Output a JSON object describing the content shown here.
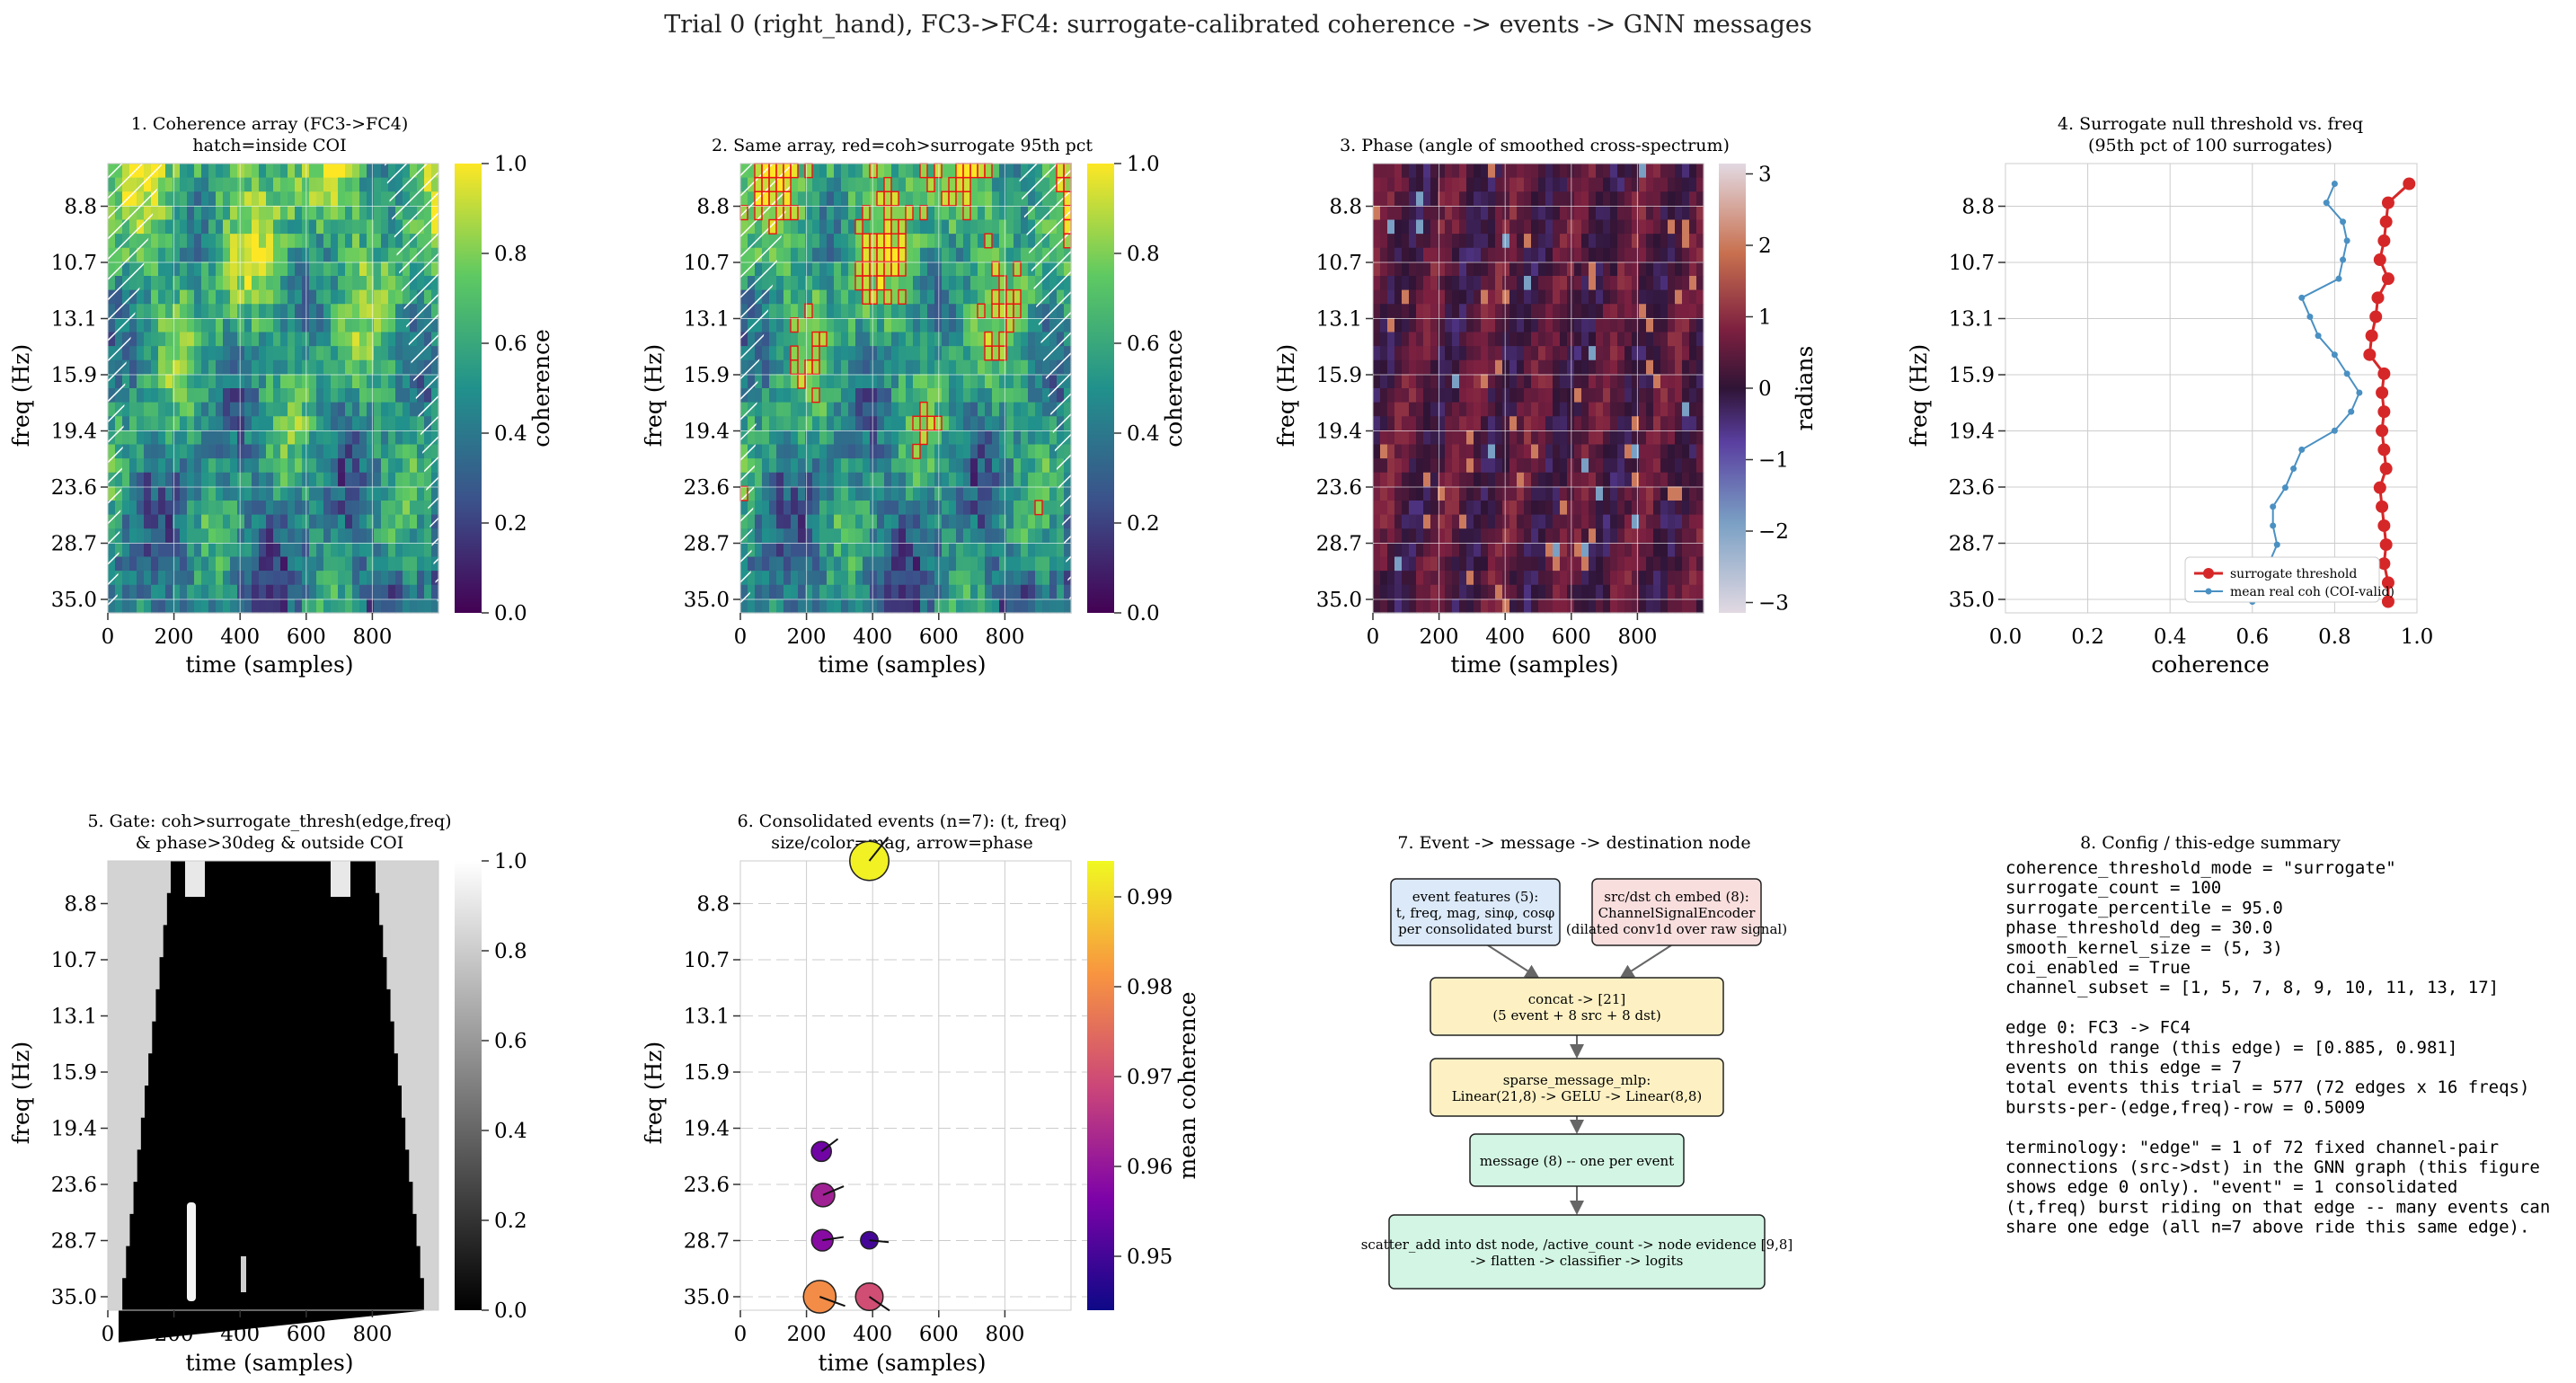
{
  "suptitle": "Trial 0 (right_hand), FC3->FC4: surrogate-calibrated coherence -> events -> GNN messages",
  "freq_ticks": [
    "8.8",
    "10.7",
    "13.1",
    "15.9",
    "19.4",
    "23.6",
    "28.7",
    "35.0"
  ],
  "time_ticks": [
    "0",
    "200",
    "400",
    "600",
    "800"
  ],
  "colors": {
    "surrogate": "#d62728",
    "mean_coh": "#4a90c2",
    "grid": "#cccccc",
    "box_blue": "#dbe9f8",
    "box_pink": "#f9dede",
    "box_yellow": "#fdf1c4",
    "box_green": "#d3f5e4"
  },
  "panel1": {
    "title": "1. Coherence array (FC3->FC4)\nhatch=inside COI",
    "xlabel": "time (samples)",
    "ylabel": "freq (Hz)",
    "cbar_label": "coherence",
    "cbar_ticks": [
      "0.0",
      "0.2",
      "0.4",
      "0.6",
      "0.8",
      "1.0"
    ]
  },
  "panel2": {
    "title": "2. Same array, red=coh>surrogate 95th pct",
    "xlabel": "time (samples)",
    "ylabel": "freq (Hz)",
    "cbar_label": "coherence",
    "cbar_ticks": [
      "0.0",
      "0.2",
      "0.4",
      "0.6",
      "0.8",
      "1.0"
    ]
  },
  "panel3": {
    "title": "3. Phase (angle of smoothed cross-spectrum)",
    "xlabel": "time (samples)",
    "ylabel": "freq (Hz)",
    "cbar_label": "radians",
    "cbar_ticks": [
      "−3",
      "−2",
      "−1",
      "0",
      "1",
      "2",
      "3"
    ]
  },
  "panel4": {
    "title": "4. Surrogate null threshold vs. freq\n(95th pct of 100 surrogates)",
    "xlabel": "coherence",
    "ylabel": "freq (Hz)",
    "xticks": [
      "0.0",
      "0.2",
      "0.4",
      "0.6",
      "0.8",
      "1.0"
    ]
  },
  "panel5": {
    "title": "5. Gate: coh>surrogate_thresh(edge,freq)\n& phase>30deg & outside COI",
    "xlabel": "time (samples)",
    "ylabel": "freq (Hz)",
    "cbar_ticks": [
      "0.0",
      "0.2",
      "0.4",
      "0.6",
      "0.8",
      "1.0"
    ]
  },
  "panel6": {
    "title": "6. Consolidated events (n=7): (t, freq)\nsize/color=mag, arrow=phase",
    "xlabel": "time (samples)",
    "ylabel": "freq (Hz)",
    "cbar_label": "mean coherence",
    "cbar_ticks": [
      "0.95",
      "0.96",
      "0.97",
      "0.98",
      "0.99"
    ]
  },
  "panel7": {
    "title": "7. Event -> message -> destination node",
    "boxes": {
      "features": "event features (5):\nt, freq, mag, sinφ, cosφ\nper consolidated burst",
      "embed": "src/dst ch embed (8):\nChannelSignalEncoder\n(dilated conv1d over raw signal)",
      "concat": "concat -> [21]\n(5 event + 8 src + 8 dst)",
      "mlp": "sparse_message_mlp:\nLinear(21,8) -> GELU -> Linear(8,8)",
      "message": "message (8) -- one per event",
      "scatter": "scatter_add into dst node, /active_count -> node evidence [9,8]\n-> flatten -> classifier -> logits"
    }
  },
  "panel8": {
    "title": "8. Config / this-edge summary",
    "lines": [
      "coherence_threshold_mode = \"surrogate\"",
      "surrogate_count = 100",
      "surrogate_percentile = 95.0",
      "phase_threshold_deg = 30.0",
      "smooth_kernel_size = (5, 3)",
      "coi_enabled = True",
      "channel_subset = [1, 5, 7, 8, 9, 10, 11, 13, 17]",
      "",
      "edge 0: FC3 -> FC4",
      "threshold range (this edge) = [0.885, 0.981]",
      "events on this edge = 7",
      "total events this trial = 577 (72 edges x 16 freqs)",
      "bursts-per-(edge,freq)-row = 0.5009",
      "",
      "terminology: \"edge\" = 1 of 72 fixed channel-pair",
      "connections (src->dst) in the GNN graph (this figure",
      "shows edge 0 only). \"event\" = 1 consolidated",
      "(t,freq) burst riding on that edge -- many events can",
      "share one edge (all n=7 above ride this same edge)."
    ]
  },
  "chart_data": [
    {
      "type": "heatmap",
      "title": "1. Coherence array (FC3->FC4)\nhatch=inside COI",
      "xlabel": "time (samples)",
      "ylabel": "freq (Hz)",
      "xlim": [
        0,
        1000
      ],
      "freq_labels": [
        "8.8",
        "10.7",
        "13.1",
        "15.9",
        "19.4",
        "23.6",
        "28.7",
        "35.0"
      ],
      "colorbar": {
        "label": "coherence",
        "range": [
          0,
          1
        ],
        "colormap": "viridis"
      }
    },
    {
      "type": "heatmap",
      "title": "2. Same array, red=coh>surrogate 95th pct",
      "xlabel": "time (samples)",
      "ylabel": "freq (Hz)",
      "xlim": [
        0,
        1000
      ],
      "colorbar": {
        "label": "coherence",
        "range": [
          0,
          1
        ],
        "colormap": "viridis"
      }
    },
    {
      "type": "heatmap",
      "title": "3. Phase (angle of smoothed cross-spectrum)",
      "xlabel": "time (samples)",
      "ylabel": "freq (Hz)",
      "xlim": [
        0,
        1000
      ],
      "colorbar": {
        "label": "radians",
        "range": [
          -3.14,
          3.14
        ],
        "colormap": "twilight"
      }
    },
    {
      "type": "line",
      "title": "4. Surrogate null threshold vs. freq\n(95th pct of 100 surrogates)",
      "xlabel": "coherence",
      "ylabel": "freq (Hz)",
      "xlim": [
        0,
        1
      ],
      "y_freq": [
        8,
        8.8,
        9.4,
        10.1,
        10.7,
        11.4,
        12.3,
        13.1,
        14.0,
        15.0,
        15.9,
        17.0,
        18.2,
        19.4,
        20.7,
        22.1,
        23.6,
        25.2,
        26.9,
        28.7,
        30.6,
        32.7,
        35.0
      ],
      "series": [
        {
          "name": "surrogate threshold",
          "x": [
            0.981,
            0.93,
            0.925,
            0.92,
            0.91,
            0.93,
            0.905,
            0.9,
            0.89,
            0.885,
            0.92,
            0.915,
            0.92,
            0.915,
            0.92,
            0.925,
            0.91,
            0.915,
            0.92,
            0.925,
            0.92,
            0.93,
            0.93
          ]
        },
        {
          "name": "mean real coh (COI-valid)",
          "x": [
            0.8,
            0.78,
            0.82,
            0.83,
            0.82,
            0.81,
            0.72,
            0.74,
            0.76,
            0.8,
            0.83,
            0.86,
            0.84,
            0.8,
            0.72,
            0.7,
            0.68,
            0.65,
            0.65,
            0.66,
            0.64,
            0.62,
            0.6
          ]
        }
      ]
    },
    {
      "type": "heatmap",
      "title": "5. Gate: coh>surrogate_thresh(edge,freq)\n& phase>30deg & outside COI",
      "xlabel": "time (samples)",
      "ylabel": "freq (Hz)",
      "xlim": [
        0,
        1000
      ],
      "colorbar": {
        "range": [
          0,
          1
        ],
        "colormap": "gray"
      }
    },
    {
      "type": "scatter",
      "title": "6. Consolidated events (n=7): (t, freq)\nsize/color=mag, arrow=phase",
      "xlabel": "time (samples)",
      "ylabel": "freq (Hz)",
      "xlim": [
        0,
        1000
      ],
      "points": [
        {
          "t": 390,
          "freq": 8.0,
          "mag": 0.993
        },
        {
          "t": 245,
          "freq": 26.0,
          "mag": 0.955
        },
        {
          "t": 250,
          "freq": 28.7,
          "mag": 0.962
        },
        {
          "t": 248,
          "freq": 31.5,
          "mag": 0.958
        },
        {
          "t": 390,
          "freq": 31.5,
          "mag": 0.95
        },
        {
          "t": 240,
          "freq": 35.0,
          "mag": 0.98
        },
        {
          "t": 390,
          "freq": 35.0,
          "mag": 0.97
        }
      ],
      "colorbar": {
        "label": "mean coherence",
        "range": [
          0.944,
          0.994
        ],
        "colormap": "plasma"
      }
    }
  ]
}
